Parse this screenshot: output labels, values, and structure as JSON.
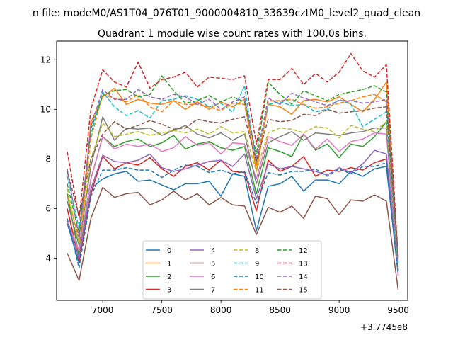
{
  "chart_data": {
    "type": "line",
    "suptitle": "n file: modeM0/AS1T04_076T01_9000004810_33639cztM0_level2_quad_clean",
    "title": "Quadrant 1 module wise count rates with 100.0s bins.",
    "xlabel": "",
    "ylabel": "",
    "x_offset_label": "+3.7745e8",
    "xlim": [
      6610,
      9580
    ],
    "ylim": [
      2.3,
      12.75
    ],
    "x_ticks": [
      7000,
      7500,
      8000,
      8500,
      9000,
      9500
    ],
    "y_ticks": [
      4,
      6,
      8,
      10,
      12
    ],
    "legend_location": "lower-center",
    "x": [
      6700,
      6800,
      6900,
      7000,
      7100,
      7200,
      7300,
      7400,
      7500,
      7600,
      7700,
      7800,
      7900,
      8000,
      8100,
      8200,
      8300,
      8400,
      8500,
      8600,
      8700,
      8800,
      8900,
      9000,
      9100,
      9200,
      9300,
      9400,
      9500
    ],
    "series": [
      {
        "name": "0",
        "color": "#1f77b4",
        "dash": "solid",
        "values": [
          5.4,
          3.8,
          6.8,
          7.2,
          7.4,
          7.5,
          7.1,
          7.15,
          6.95,
          6.75,
          7.0,
          7.0,
          7.1,
          6.5,
          7.4,
          7.3,
          5.1,
          6.9,
          7.0,
          7.3,
          6.7,
          7.15,
          7.15,
          7.0,
          7.5,
          7.3,
          7.6,
          7.7,
          3.3
        ]
      },
      {
        "name": "1",
        "color": "#ff7f0e",
        "dash": "solid",
        "values": [
          6.0,
          4.0,
          9.5,
          10.5,
          10.85,
          10.2,
          10.4,
          10.25,
          10.2,
          10.35,
          10.0,
          10.3,
          10.0,
          10.3,
          10.1,
          10.4,
          7.5,
          10.2,
          10.1,
          9.8,
          10.35,
          10.4,
          10.3,
          10.5,
          10.2,
          9.9,
          10.4,
          11.1,
          4.0
        ]
      },
      {
        "name": "2",
        "color": "#2ca02c",
        "dash": "solid",
        "values": [
          6.6,
          4.1,
          7.2,
          8.9,
          8.5,
          8.7,
          8.8,
          8.5,
          8.65,
          8.95,
          8.4,
          8.6,
          8.7,
          8.45,
          8.35,
          8.5,
          6.6,
          8.45,
          8.3,
          8.1,
          9.0,
          8.35,
          8.6,
          8.05,
          8.6,
          8.5,
          8.9,
          9.5,
          3.5
        ]
      },
      {
        "name": "3",
        "color": "#d62728",
        "dash": "solid",
        "values": [
          6.0,
          3.9,
          6.6,
          8.1,
          7.6,
          7.85,
          7.75,
          8.05,
          7.6,
          7.3,
          7.7,
          7.85,
          7.55,
          7.95,
          7.5,
          7.45,
          5.9,
          7.95,
          7.5,
          7.7,
          8.1,
          7.3,
          7.55,
          7.5,
          7.65,
          7.55,
          7.85,
          8.0,
          3.5
        ]
      },
      {
        "name": "4",
        "color": "#9467bd",
        "dash": "solid",
        "values": [
          5.5,
          4.0,
          6.8,
          8.15,
          7.9,
          7.85,
          7.95,
          8.2,
          7.65,
          7.5,
          7.6,
          7.75,
          7.9,
          7.95,
          7.7,
          8.2,
          6.4,
          7.8,
          7.6,
          7.7,
          7.6,
          7.5,
          7.35,
          7.65,
          7.45,
          7.8,
          8.35,
          8.2,
          3.5
        ]
      },
      {
        "name": "5",
        "color": "#8c564b",
        "dash": "solid",
        "values": [
          4.2,
          3.1,
          5.6,
          6.85,
          6.45,
          6.6,
          6.65,
          6.15,
          6.35,
          6.7,
          6.35,
          6.6,
          6.15,
          6.45,
          6.15,
          6.1,
          4.95,
          6.05,
          5.85,
          6.1,
          5.6,
          6.5,
          6.4,
          5.75,
          6.35,
          6.3,
          6.55,
          6.3,
          2.7
        ]
      },
      {
        "name": "6",
        "color": "#e377c2",
        "dash": "solid",
        "values": [
          5.5,
          4.3,
          7.2,
          8.9,
          8.4,
          8.6,
          8.5,
          8.6,
          8.3,
          8.45,
          8.9,
          8.55,
          8.65,
          8.2,
          8.65,
          8.6,
          7.2,
          8.9,
          8.7,
          8.55,
          9.0,
          8.4,
          8.8,
          8.3,
          8.7,
          8.8,
          9.05,
          9.0,
          3.3
        ]
      },
      {
        "name": "7",
        "color": "#7f7f7f",
        "dash": "solid",
        "values": [
          6.3,
          4.5,
          7.7,
          9.7,
          8.75,
          9.25,
          9.2,
          9.25,
          8.95,
          9.15,
          9.35,
          9.0,
          8.85,
          9.05,
          8.75,
          9.0,
          7.0,
          8.65,
          8.9,
          9.1,
          8.75,
          9.05,
          9.0,
          8.95,
          9.05,
          9.1,
          9.25,
          9.25,
          3.6
        ]
      },
      {
        "name": "8",
        "color": "#bcbd22",
        "dash": "dashed",
        "values": [
          6.8,
          4.6,
          8.0,
          9.45,
          8.9,
          9.0,
          9.1,
          8.95,
          9.05,
          9.15,
          9.05,
          9.2,
          9.0,
          9.3,
          9.05,
          9.1,
          7.5,
          9.05,
          9.25,
          9.2,
          9.05,
          9.3,
          9.25,
          8.85,
          9.35,
          9.2,
          9.1,
          9.5,
          3.7
        ]
      },
      {
        "name": "9",
        "color": "#17becf",
        "dash": "dashed",
        "values": [
          7.3,
          5.2,
          9.0,
          10.7,
          10.1,
          9.75,
          9.95,
          9.65,
          10.35,
          10.4,
          10.55,
          10.4,
          10.1,
          10.25,
          9.9,
          10.95,
          7.8,
          10.2,
          10.3,
          10.15,
          10.2,
          9.9,
          10.0,
          10.4,
          10.2,
          9.3,
          9.6,
          9.9,
          3.8
        ]
      },
      {
        "name": "10",
        "color": "#1f77b4",
        "dash": "dashed",
        "values": [
          5.6,
          3.6,
          6.5,
          7.55,
          7.55,
          7.65,
          7.55,
          7.55,
          7.25,
          7.55,
          7.75,
          7.7,
          7.45,
          7.55,
          7.4,
          7.5,
          6.2,
          7.45,
          7.35,
          7.5,
          7.5,
          7.6,
          7.3,
          7.6,
          7.4,
          7.7,
          7.7,
          7.85,
          3.4
        ]
      },
      {
        "name": "11",
        "color": "#ff7f0e",
        "dash": "dashed",
        "values": [
          6.5,
          4.8,
          8.8,
          10.6,
          10.45,
          10.3,
          10.6,
          10.1,
          9.9,
          10.35,
          10.2,
          10.2,
          10.1,
          9.95,
          10.25,
          10.2,
          7.7,
          10.35,
          10.35,
          10.4,
          10.2,
          10.05,
          10.1,
          10.25,
          10.35,
          10.5,
          10.6,
          10.3,
          4.0
        ]
      },
      {
        "name": "12",
        "color": "#2ca02c",
        "dash": "dashed",
        "values": [
          7.0,
          5.0,
          9.2,
          10.55,
          10.75,
          10.8,
          10.5,
          10.6,
          11.35,
          10.75,
          10.25,
          10.35,
          10.55,
          10.3,
          10.5,
          10.3,
          8.2,
          11.1,
          10.6,
          10.2,
          10.75,
          10.55,
          10.35,
          10.6,
          10.7,
          10.8,
          10.95,
          10.7,
          4.0
        ]
      },
      {
        "name": "13",
        "color": "#d62728",
        "dash": "dashed",
        "values": [
          8.3,
          5.6,
          10.0,
          11.6,
          11.1,
          10.9,
          11.9,
          10.85,
          11.2,
          11.3,
          11.5,
          10.9,
          11.3,
          11.25,
          11.2,
          11.35,
          8.6,
          11.2,
          11.2,
          11.65,
          11.0,
          11.45,
          11.1,
          11.5,
          12.25,
          11.55,
          11.3,
          11.8,
          4.0
        ]
      },
      {
        "name": "14",
        "color": "#9467bd",
        "dash": "dashed",
        "values": [
          7.6,
          4.8,
          9.3,
          10.8,
          10.4,
          10.4,
          10.8,
          10.5,
          10.4,
          10.6,
          10.5,
          10.2,
          10.4,
          10.0,
          10.3,
          10.5,
          8.0,
          10.45,
          10.2,
          10.65,
          10.45,
          10.3,
          10.15,
          10.35,
          10.35,
          10.25,
          10.3,
          10.4,
          3.9
        ]
      },
      {
        "name": "15",
        "color": "#8c564b",
        "dash": "dashed",
        "values": [
          7.5,
          5.7,
          8.0,
          9.0,
          9.5,
          9.2,
          9.35,
          9.55,
          9.4,
          9.2,
          9.25,
          9.6,
          9.5,
          9.45,
          9.6,
          9.7,
          7.9,
          9.6,
          9.5,
          9.55,
          9.8,
          9.75,
          10.0,
          9.85,
          9.9,
          9.95,
          10.05,
          10.1,
          4.1
        ]
      }
    ]
  }
}
